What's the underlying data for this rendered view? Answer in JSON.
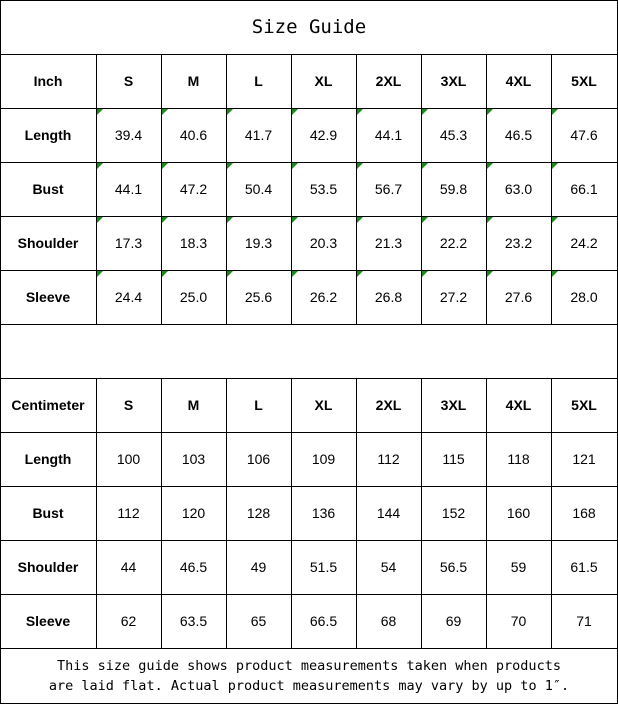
{
  "title": "Size Guide",
  "accent_error_indicator_color": "#1a8a1a",
  "inch_table": {
    "headers": [
      "Inch",
      "S",
      "M",
      "L",
      "XL",
      "2XL",
      "3XL",
      "4XL",
      "5XL"
    ],
    "rows": [
      {
        "label": "Length",
        "values": [
          "39.4",
          "40.6",
          "41.7",
          "42.9",
          "44.1",
          "45.3",
          "46.5",
          "47.6"
        ]
      },
      {
        "label": "Bust",
        "values": [
          "44.1",
          "47.2",
          "50.4",
          "53.5",
          "56.7",
          "59.8",
          "63.0",
          "66.1"
        ]
      },
      {
        "label": "Shoulder",
        "values": [
          "17.3",
          "18.3",
          "19.3",
          "20.3",
          "21.3",
          "22.2",
          "23.2",
          "24.2"
        ]
      },
      {
        "label": "Sleeve",
        "values": [
          "24.4",
          "25.0",
          "25.6",
          "26.2",
          "26.8",
          "27.2",
          "27.6",
          "28.0"
        ]
      }
    ]
  },
  "cm_table": {
    "headers": [
      "Centimeter",
      "S",
      "M",
      "L",
      "XL",
      "2XL",
      "3XL",
      "4XL",
      "5XL"
    ],
    "rows": [
      {
        "label": "Length",
        "values": [
          "100",
          "103",
          "106",
          "109",
          "112",
          "115",
          "118",
          "121"
        ]
      },
      {
        "label": "Bust",
        "values": [
          "112",
          "120",
          "128",
          "136",
          "144",
          "152",
          "160",
          "168"
        ]
      },
      {
        "label": "Shoulder",
        "values": [
          "44",
          "46.5",
          "49",
          "51.5",
          "54",
          "56.5",
          "59",
          "61.5"
        ]
      },
      {
        "label": "Sleeve",
        "values": [
          "62",
          "63.5",
          "65",
          "66.5",
          "68",
          "69",
          "70",
          "71"
        ]
      }
    ]
  },
  "note": {
    "line1": "This size guide shows product measurements taken when products",
    "line2": "are laid flat. Actual product measurements may vary by up to 1″."
  }
}
